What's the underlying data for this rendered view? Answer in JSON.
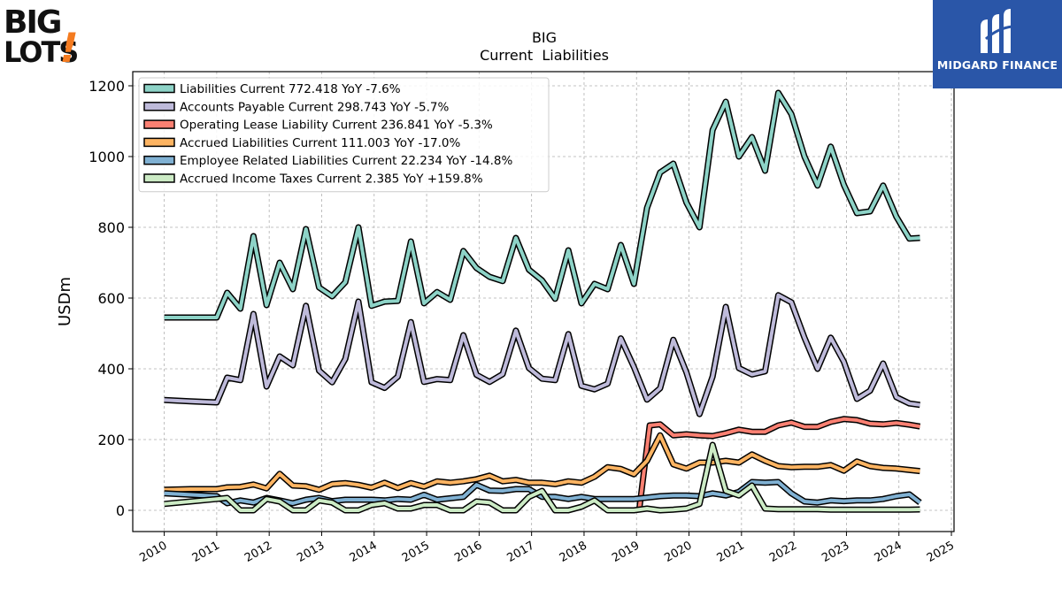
{
  "brand_logo": {
    "line1": "BIG",
    "line2": "LOTS",
    "mark": "!"
  },
  "partner_logo": {
    "name": "MIDGARD FINANCE",
    "icon": "midgard-m-icon",
    "color": "#2a56a8"
  },
  "chart_data": {
    "type": "line",
    "title": "BIG",
    "subtitle": "Current  Liabilities",
    "ylabel": "USDm",
    "xlabel": "",
    "xlim": [
      2009.4,
      2025.05
    ],
    "ylim": [
      -60,
      1240
    ],
    "yticks": [
      0,
      200,
      400,
      600,
      800,
      1000,
      1200
    ],
    "xticks": [
      "2010",
      "2011",
      "2012",
      "2013",
      "2014",
      "2015",
      "2016",
      "2017",
      "2018",
      "2019",
      "2020",
      "2021",
      "2022",
      "2023",
      "2024",
      "2025"
    ],
    "grid": true,
    "legend_position": "upper-left",
    "series": [
      {
        "name": "Liabilities Current  772.418 YoY -7.6%",
        "color": "#8dd3c7",
        "x": [
          2010.0,
          2010.5,
          2011.0,
          2011.2,
          2011.45,
          2011.7,
          2011.95,
          2012.2,
          2012.45,
          2012.7,
          2012.95,
          2013.2,
          2013.45,
          2013.7,
          2013.95,
          2014.2,
          2014.45,
          2014.7,
          2014.95,
          2015.2,
          2015.45,
          2015.7,
          2015.95,
          2016.2,
          2016.45,
          2016.7,
          2016.95,
          2017.2,
          2017.45,
          2017.7,
          2017.95,
          2018.2,
          2018.45,
          2018.7,
          2018.95,
          2019.2,
          2019.45,
          2019.7,
          2019.95,
          2020.2,
          2020.45,
          2020.7,
          2020.95,
          2021.2,
          2021.45,
          2021.7,
          2021.95,
          2022.2,
          2022.45,
          2022.7,
          2022.95,
          2023.2,
          2023.45,
          2023.7,
          2023.95,
          2024.2,
          2024.4
        ],
        "y": [
          545,
          545,
          545,
          615,
          570,
          775,
          580,
          700,
          625,
          795,
          630,
          605,
          645,
          800,
          578,
          590,
          592,
          760,
          585,
          617,
          595,
          733,
          685,
          660,
          648,
          770,
          680,
          650,
          598,
          735,
          585,
          640,
          625,
          750,
          640,
          855,
          955,
          980,
          870,
          800,
          1075,
          1155,
          1000,
          1055,
          960,
          1180,
          1120,
          1000,
          918,
          1028,
          920,
          840,
          845,
          918,
          830,
          768,
          770
        ]
      },
      {
        "name": "Accounts Payable Current  298.743 YoY -5.7%",
        "color": "#bebada",
        "x": [
          2010.0,
          2010.5,
          2011.0,
          2011.2,
          2011.45,
          2011.7,
          2011.95,
          2012.2,
          2012.45,
          2012.7,
          2012.95,
          2013.2,
          2013.45,
          2013.7,
          2013.95,
          2014.2,
          2014.45,
          2014.7,
          2014.95,
          2015.2,
          2015.45,
          2015.7,
          2015.95,
          2016.2,
          2016.45,
          2016.7,
          2016.95,
          2017.2,
          2017.45,
          2017.7,
          2017.95,
          2018.2,
          2018.45,
          2018.7,
          2018.95,
          2019.2,
          2019.45,
          2019.7,
          2019.95,
          2020.2,
          2020.45,
          2020.7,
          2020.95,
          2021.2,
          2021.45,
          2021.7,
          2021.95,
          2022.2,
          2022.45,
          2022.7,
          2022.95,
          2023.2,
          2023.45,
          2023.7,
          2023.95,
          2024.2,
          2024.4
        ],
        "y": [
          312,
          308,
          305,
          375,
          368,
          555,
          350,
          435,
          410,
          578,
          395,
          362,
          428,
          590,
          362,
          346,
          378,
          532,
          363,
          371,
          368,
          495,
          383,
          363,
          385,
          508,
          402,
          372,
          368,
          498,
          352,
          342,
          358,
          486,
          405,
          313,
          345,
          482,
          390,
          272,
          378,
          575,
          402,
          384,
          393,
          608,
          588,
          488,
          400,
          488,
          420,
          315,
          338,
          415,
          320,
          302,
          298
        ]
      },
      {
        "name": "Operating Lease Liability Current  236.841 YoY -5.3%",
        "color": "#fb8072",
        "x": [
          2019.05,
          2019.25,
          2019.45,
          2019.7,
          2019.95,
          2020.2,
          2020.45,
          2020.7,
          2020.95,
          2021.2,
          2021.45,
          2021.7,
          2021.95,
          2022.2,
          2022.45,
          2022.7,
          2022.95,
          2023.2,
          2023.45,
          2023.7,
          2023.95,
          2024.2,
          2024.4
        ],
        "y": [
          0,
          240,
          243,
          212,
          215,
          212,
          210,
          218,
          228,
          222,
          222,
          240,
          248,
          236,
          236,
          250,
          258,
          255,
          245,
          243,
          247,
          242,
          237
        ]
      },
      {
        "name": "Accrued Liabilities Current  111.003 YoY -17.0%",
        "color": "#fdb462",
        "x": [
          2010.0,
          2010.5,
          2011.0,
          2011.2,
          2011.45,
          2011.7,
          2011.95,
          2012.2,
          2012.45,
          2012.7,
          2012.95,
          2013.2,
          2013.45,
          2013.7,
          2013.95,
          2014.2,
          2014.45,
          2014.7,
          2014.95,
          2015.2,
          2015.45,
          2015.7,
          2015.95,
          2016.2,
          2016.45,
          2016.7,
          2016.95,
          2017.2,
          2017.45,
          2017.7,
          2017.95,
          2018.2,
          2018.45,
          2018.7,
          2018.95,
          2019.2,
          2019.45,
          2019.7,
          2019.95,
          2020.2,
          2020.45,
          2020.7,
          2020.95,
          2021.2,
          2021.45,
          2021.7,
          2021.95,
          2022.2,
          2022.45,
          2022.7,
          2022.95,
          2023.2,
          2023.45,
          2023.7,
          2023.95,
          2024.2,
          2024.4
        ],
        "y": [
          58,
          60,
          60,
          65,
          66,
          73,
          62,
          103,
          70,
          68,
          58,
          74,
          77,
          72,
          64,
          78,
          63,
          77,
          67,
          82,
          78,
          82,
          88,
          98,
          82,
          86,
          78,
          78,
          74,
          82,
          78,
          95,
          122,
          117,
          102,
          140,
          212,
          130,
          118,
          135,
          135,
          140,
          135,
          158,
          140,
          125,
          122,
          123,
          123,
          128,
          112,
          138,
          125,
          120,
          118,
          114,
          111
        ]
      },
      {
        "name": "Employee Related Liabilities Current  22.234 YoY -14.8%",
        "color": "#80b1d3",
        "x": [
          2010.0,
          2010.5,
          2011.0,
          2011.2,
          2011.45,
          2011.7,
          2011.95,
          2012.2,
          2012.45,
          2012.7,
          2012.95,
          2013.2,
          2013.45,
          2013.7,
          2013.95,
          2014.2,
          2014.45,
          2014.7,
          2014.95,
          2015.2,
          2015.45,
          2015.7,
          2015.95,
          2016.2,
          2016.45,
          2016.7,
          2016.95,
          2017.2,
          2017.45,
          2017.7,
          2017.95,
          2018.2,
          2018.45,
          2018.7,
          2018.95,
          2019.2,
          2019.45,
          2019.7,
          2019.95,
          2020.2,
          2020.45,
          2020.7,
          2020.95,
          2021.2,
          2021.45,
          2021.7,
          2021.95,
          2022.2,
          2022.45,
          2022.7,
          2022.95,
          2023.2,
          2023.45,
          2023.7,
          2023.95,
          2024.2,
          2024.4
        ],
        "y": [
          48,
          44,
          40,
          20,
          28,
          22,
          35,
          28,
          20,
          30,
          35,
          26,
          30,
          30,
          30,
          28,
          32,
          30,
          44,
          30,
          34,
          38,
          72,
          56,
          55,
          60,
          60,
          38,
          38,
          32,
          38,
          32,
          32,
          32,
          32,
          36,
          40,
          42,
          42,
          40,
          48,
          42,
          52,
          80,
          78,
          80,
          48,
          25,
          22,
          28,
          26,
          28,
          28,
          32,
          40,
          45,
          22
        ]
      },
      {
        "name": "Accrued Income Taxes Current  2.385 YoY +159.8%",
        "color": "#ccebc5",
        "x": [
          2010.0,
          2010.5,
          2011.0,
          2011.2,
          2011.45,
          2011.7,
          2011.95,
          2012.2,
          2012.45,
          2012.7,
          2012.95,
          2013.2,
          2013.45,
          2013.7,
          2013.95,
          2014.2,
          2014.45,
          2014.7,
          2014.95,
          2015.2,
          2015.45,
          2015.7,
          2015.95,
          2016.2,
          2016.45,
          2016.7,
          2016.95,
          2017.2,
          2017.45,
          2017.7,
          2017.95,
          2018.2,
          2018.45,
          2018.7,
          2018.95,
          2019.2,
          2019.45,
          2019.7,
          2019.95,
          2020.2,
          2020.45,
          2020.7,
          2020.95,
          2021.2,
          2021.45,
          2021.7,
          2021.95,
          2022.2,
          2022.45,
          2022.7,
          2022.95,
          2023.2,
          2023.45,
          2023.7,
          2023.95,
          2024.2,
          2024.4
        ],
        "y": [
          18,
          25,
          32,
          35,
          0,
          0,
          32,
          25,
          0,
          0,
          28,
          22,
          0,
          0,
          15,
          20,
          5,
          5,
          15,
          15,
          0,
          0,
          25,
          22,
          0,
          0,
          38,
          55,
          0,
          0,
          10,
          28,
          0,
          0,
          0,
          5,
          0,
          2,
          5,
          18,
          185,
          55,
          42,
          70,
          5,
          3,
          3,
          3,
          3,
          2,
          2,
          2,
          2,
          2,
          2,
          2,
          2.4
        ]
      }
    ]
  }
}
